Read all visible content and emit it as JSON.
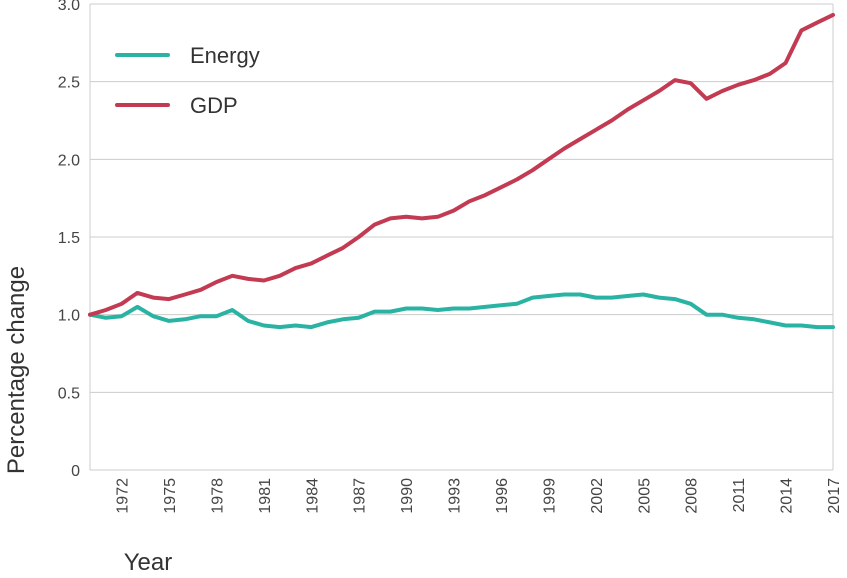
{
  "chart_data": {
    "type": "line",
    "title": "",
    "xlabel": "Year",
    "ylabel": "Percentage change",
    "xlim": [
      1970,
      2017
    ],
    "ylim": [
      0,
      3.0
    ],
    "yticks": [
      "0",
      "0.5",
      "1.0",
      "1.5",
      "2.0",
      "2.5",
      "3.0"
    ],
    "xticks": [
      "1972",
      "1975",
      "1978",
      "1981",
      "1984",
      "1987",
      "1990",
      "1993",
      "1996",
      "1999",
      "2002",
      "2005",
      "2008",
      "2011",
      "2014",
      "2017"
    ],
    "grid": "horizontal",
    "legend_position": "top-left",
    "x": [
      1970,
      1971,
      1972,
      1973,
      1974,
      1975,
      1976,
      1977,
      1978,
      1979,
      1980,
      1981,
      1982,
      1983,
      1984,
      1985,
      1986,
      1987,
      1988,
      1989,
      1990,
      1991,
      1992,
      1993,
      1994,
      1995,
      1996,
      1997,
      1998,
      1999,
      2000,
      2001,
      2002,
      2003,
      2004,
      2005,
      2006,
      2007,
      2008,
      2009,
      2010,
      2011,
      2012,
      2013,
      2014,
      2015,
      2016,
      2017
    ],
    "series": [
      {
        "name": "Energy",
        "color": "#2ab3a3",
        "values": [
          1.0,
          0.98,
          0.99,
          1.05,
          0.99,
          0.96,
          0.97,
          0.99,
          0.99,
          1.03,
          0.96,
          0.93,
          0.92,
          0.93,
          0.92,
          0.95,
          0.97,
          0.98,
          1.02,
          1.02,
          1.04,
          1.04,
          1.03,
          1.04,
          1.04,
          1.05,
          1.06,
          1.07,
          1.11,
          1.12,
          1.13,
          1.13,
          1.11,
          1.11,
          1.12,
          1.13,
          1.11,
          1.1,
          1.07,
          1.0,
          1.0,
          0.98,
          0.97,
          0.95,
          0.93,
          0.93,
          0.92,
          0.92
        ]
      },
      {
        "name": "GDP",
        "color": "#c23b52",
        "values": [
          1.0,
          1.03,
          1.07,
          1.14,
          1.11,
          1.1,
          1.13,
          1.16,
          1.21,
          1.25,
          1.23,
          1.22,
          1.25,
          1.3,
          1.33,
          1.38,
          1.43,
          1.5,
          1.58,
          1.62,
          1.63,
          1.62,
          1.63,
          1.67,
          1.73,
          1.77,
          1.82,
          1.87,
          1.93,
          2.0,
          2.07,
          2.13,
          2.19,
          2.25,
          2.32,
          2.38,
          2.44,
          2.51,
          2.49,
          2.39,
          2.44,
          2.48,
          2.51,
          2.55,
          2.62,
          2.83,
          2.88,
          2.93
        ]
      }
    ]
  }
}
